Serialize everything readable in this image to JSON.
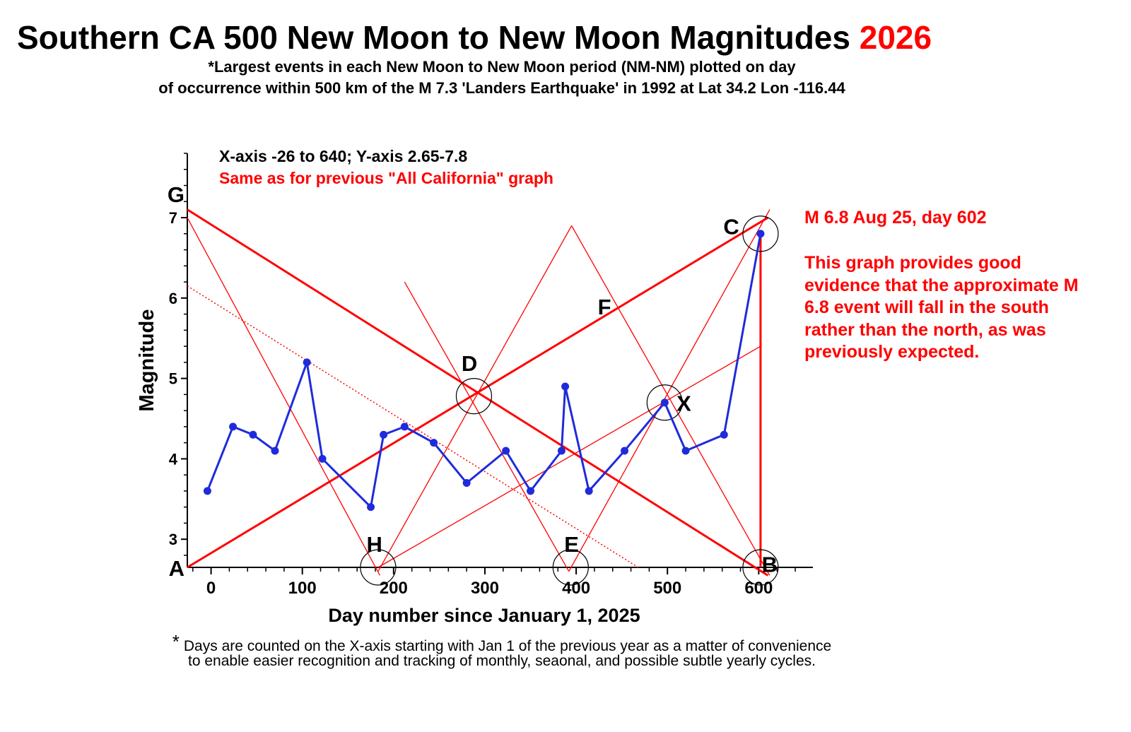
{
  "header": {
    "title": "Southern CA 500 New Moon to New Moon Magnitudes",
    "title_year": "2026",
    "subtitle_line1": "*Largest events in each New Moon to New Moon period (NM-NM) plotted on day",
    "subtitle_line2": "of occurrence within 500 km of the M 7.3 'Landers Earthquake' in 1992 at Lat 34.2 Lon -116.44"
  },
  "notes": {
    "axis_range": "X-axis -26 to 640; Y-axis 2.65-7.8",
    "same_as": "Same as for previous \"All California\" graph",
    "event_label": "M 6.8 Aug 25, day 602",
    "evidence_text": "This graph provides good evidence that the approximate M 6.8 event will fall in the south rather than the north, as was previously expected."
  },
  "footnote": {
    "star": "*",
    "line1": "Days are counted on the X-axis starting with Jan 1 of the previous year as a matter of convenience",
    "line2": "to enable easier recognition and tracking of monthly, seaonal, and possible subtle yearly cycles."
  },
  "colors": {
    "series": "#1f2bdb",
    "trend": "#ff0000",
    "text": "#000000"
  },
  "chart_data": {
    "type": "line",
    "xlabel": "Day number since January 1, 2025",
    "ylabel": "Magnitude",
    "xlim": [
      -26,
      640
    ],
    "ylim": [
      2.65,
      7.8
    ],
    "x_ticks": [
      0,
      100,
      200,
      300,
      400,
      500,
      600
    ],
    "y_ticks": [
      3,
      4,
      5,
      6,
      7
    ],
    "series": [
      {
        "x": [
          -4,
          24,
          46,
          70,
          105,
          122,
          175,
          189,
          212,
          244,
          280,
          323,
          350,
          384,
          388,
          414,
          453,
          497,
          520,
          562,
          602
        ],
        "y": [
          3.6,
          4.4,
          4.3,
          4.1,
          5.2,
          4.0,
          3.4,
          4.3,
          4.4,
          4.2,
          3.7,
          4.1,
          3.6,
          4.1,
          4.9,
          3.6,
          4.1,
          4.7,
          4.1,
          4.3,
          6.8
        ]
      }
    ],
    "point_labels": [
      {
        "text": "G",
        "x": -26,
        "y": 7.3
      },
      {
        "text": "A",
        "x": -26,
        "y": 2.65
      },
      {
        "text": "C",
        "x": 570,
        "y": 6.9
      },
      {
        "text": "D",
        "x": 283,
        "y": 5.2
      },
      {
        "text": "F",
        "x": 431,
        "y": 5.9
      },
      {
        "text": "X",
        "x": 518,
        "y": 4.7
      },
      {
        "text": "H",
        "x": 179,
        "y": 2.95
      },
      {
        "text": "E",
        "x": 395,
        "y": 2.95
      },
      {
        "text": "B",
        "x": 612,
        "y": 2.7
      }
    ],
    "circles": [
      {
        "x": 288,
        "y": 4.78
      },
      {
        "x": 497,
        "y": 4.7
      },
      {
        "x": 602,
        "y": 6.8
      },
      {
        "x": 183,
        "y": 2.65
      },
      {
        "x": 394,
        "y": 2.65
      },
      {
        "x": 602,
        "y": 2.65
      }
    ],
    "trend_lines": [
      {
        "x1": -26,
        "y1": 7.1,
        "x2": 610,
        "y2": 2.55,
        "style": "heavy"
      },
      {
        "x1": -26,
        "y1": 2.65,
        "x2": 610,
        "y2": 7.0,
        "style": "heavy"
      },
      {
        "x1": 602,
        "y1": 6.8,
        "x2": 602,
        "y2": 2.65,
        "style": "heavy"
      },
      {
        "x1": -26,
        "y1": 7.0,
        "x2": 185,
        "y2": 2.55,
        "style": "thin"
      },
      {
        "x1": 183,
        "y1": 2.6,
        "x2": 395,
        "y2": 6.9,
        "style": "thin"
      },
      {
        "x1": 395,
        "y1": 6.9,
        "x2": 612,
        "y2": 2.55,
        "style": "thin"
      },
      {
        "x1": 212,
        "y1": 6.2,
        "x2": 392,
        "y2": 2.6,
        "style": "thin"
      },
      {
        "x1": 392,
        "y1": 2.6,
        "x2": 612,
        "y2": 7.1,
        "style": "thin"
      },
      {
        "x1": 183,
        "y1": 2.65,
        "x2": 602,
        "y2": 5.4,
        "style": "thin"
      },
      {
        "x1": -26,
        "y1": 6.15,
        "x2": 468,
        "y2": 2.65,
        "style": "dotted"
      }
    ]
  }
}
